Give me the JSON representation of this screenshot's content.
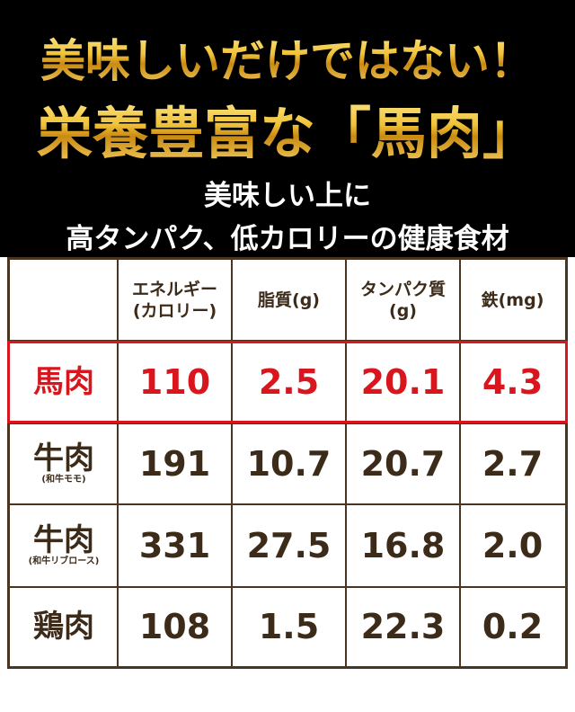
{
  "header": {
    "line1": "美味しいだけではない！",
    "line2": "栄養豊富な「馬肉」",
    "sub1": "美味しい上に",
    "sub2": "高タンパク、低カロリーの健康食材"
  },
  "table": {
    "columns": [
      [
        "エネルギー",
        "(カロリー)"
      ],
      [
        "脂質(g)"
      ],
      [
        "タンパク質",
        "(g)"
      ],
      [
        "鉄(mg)"
      ]
    ],
    "rows": [
      {
        "name": "馬肉",
        "values": [
          "110",
          "2.5",
          "20.1",
          "4.3"
        ]
      },
      {
        "name": "牛肉",
        "note": "(和牛モモ)",
        "values": [
          "191",
          "10.7",
          "20.7",
          "2.7"
        ]
      },
      {
        "name": "牛肉",
        "note": "(和牛リブロース)",
        "values": [
          "331",
          "27.5",
          "16.8",
          "2.0"
        ]
      },
      {
        "name": "鶏肉",
        "values": [
          "108",
          "1.5",
          "22.3",
          "0.2"
        ]
      }
    ]
  }
}
